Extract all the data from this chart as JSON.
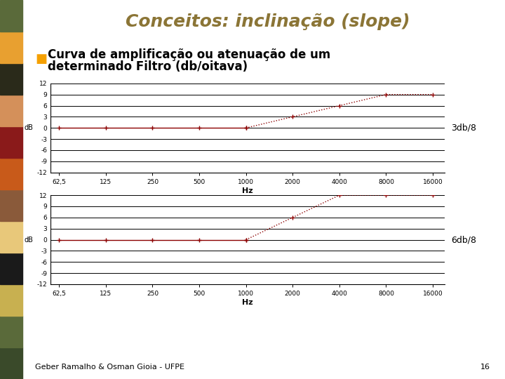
{
  "title": "Conceitos: inclinação (slope)",
  "title_color": "#8B7536",
  "title_fontsize": 18,
  "title_fontstyle": "italic",
  "title_fontweight": "bold",
  "bullet_color": "#F5A000",
  "bullet_text_line1": "Curva de amplificação ou atenuação de um",
  "bullet_text_line2": "determinado Filtro (db/oitava)",
  "bullet_fontsize": 12,
  "background_color": "#FFFFFF",
  "left_strip_colors": [
    "#3a4a2a",
    "#5a6a3a",
    "#c8b050",
    "#1a1a1a",
    "#e8c87a",
    "#8a5a3a",
    "#c85a1a",
    "#8a1a1a",
    "#d4905a",
    "#2a2a1a",
    "#e8a030",
    "#5a6a3a"
  ],
  "freq_labels": [
    "62,5",
    "125",
    "250",
    "500",
    "1000",
    "2000",
    "4000",
    "8000",
    "16000"
  ],
  "freq_values": [
    62.5,
    125,
    250,
    500,
    1000,
    2000,
    4000,
    8000,
    16000
  ],
  "yticks": [
    -12,
    -9,
    -6,
    -3,
    0,
    3,
    6,
    9,
    12
  ],
  "xlabel1": "Hz",
  "xlabel2": "Hz",
  "ylabel": "dB",
  "line_color": "#8B0000",
  "dot_color": "#8B0000",
  "grid_color": "#000000",
  "label1": "3db/8",
  "label2": "6db/8",
  "label_fontsize": 9,
  "chart1_flat_freqs": [
    62.5,
    125,
    250,
    500,
    1000
  ],
  "chart1_flat_vals": [
    0,
    0,
    0,
    0,
    0
  ],
  "chart1_slope_freqs": [
    1000,
    2000,
    4000,
    8000,
    16000
  ],
  "chart1_slope_vals": [
    0,
    3,
    6,
    9,
    9
  ],
  "chart2_flat_freqs": [
    62.5,
    125,
    250,
    500,
    1000
  ],
  "chart2_flat_vals": [
    0,
    0,
    0,
    0,
    0
  ],
  "chart2_slope_freqs": [
    1000,
    2000,
    4000,
    8000,
    16000
  ],
  "chart2_slope_vals": [
    0,
    6,
    12,
    12,
    12
  ],
  "footer_text": "Geber Ramalho & Osman Gioia - UFPE",
  "footer_fontsize": 8,
  "page_number": "16",
  "ylim": [
    -12,
    12
  ]
}
